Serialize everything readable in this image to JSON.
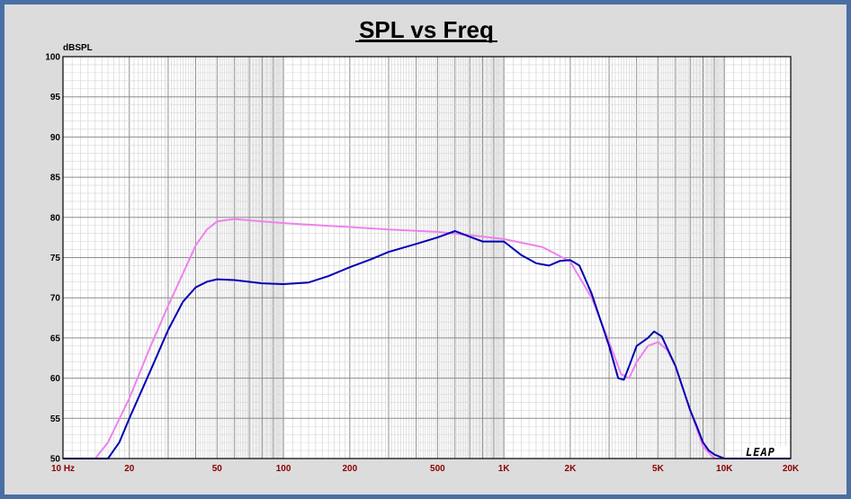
{
  "chart_data": {
    "type": "line",
    "title": "SPL vs Freq",
    "ylabel": "dBSPL",
    "xlabel": "",
    "xscale": "log",
    "xlim": [
      10,
      20000
    ],
    "ylim": [
      50,
      100
    ],
    "grid": true,
    "legend": "none",
    "logo": "LEAP",
    "x_tick_values": [
      10,
      20,
      50,
      100,
      200,
      500,
      1000,
      2000,
      5000,
      10000,
      20000
    ],
    "x_tick_labels": [
      "10 Hz",
      "20",
      "50",
      "100",
      "200",
      "500",
      "1K",
      "2K",
      "5K",
      "10K",
      "20K"
    ],
    "y_tick_values": [
      100,
      95,
      90,
      85,
      80,
      75,
      70,
      65,
      60,
      55,
      50
    ],
    "y_tick_labels": [
      "100",
      "95",
      "90",
      "85",
      "80",
      "75",
      "70",
      "65",
      "60",
      "55",
      "50"
    ],
    "series": [
      {
        "color": "#ee82ee",
        "points": [
          [
            10,
            50
          ],
          [
            14,
            50
          ],
          [
            16,
            52
          ],
          [
            20,
            57.5
          ],
          [
            25,
            64
          ],
          [
            30,
            69
          ],
          [
            35,
            73
          ],
          [
            40,
            76.5
          ],
          [
            45,
            78.5
          ],
          [
            50,
            79.5
          ],
          [
            60,
            79.8
          ],
          [
            80,
            79.5
          ],
          [
            100,
            79.3
          ],
          [
            150,
            79
          ],
          [
            200,
            78.8
          ],
          [
            300,
            78.5
          ],
          [
            500,
            78.2
          ],
          [
            700,
            77.8
          ],
          [
            1000,
            77.3
          ],
          [
            1500,
            76.3
          ],
          [
            2000,
            74.5
          ],
          [
            2500,
            70
          ],
          [
            3000,
            64.5
          ],
          [
            3400,
            60.5
          ],
          [
            3700,
            60
          ],
          [
            4000,
            62
          ],
          [
            4500,
            64
          ],
          [
            5000,
            64.5
          ],
          [
            5500,
            63.5
          ],
          [
            6000,
            61.5
          ],
          [
            7000,
            56
          ],
          [
            8000,
            51.5
          ],
          [
            9000,
            50
          ],
          [
            10000,
            50
          ],
          [
            20000,
            50
          ]
        ]
      },
      {
        "color": "#0000b4",
        "points": [
          [
            10,
            50
          ],
          [
            16,
            50
          ],
          [
            18,
            52
          ],
          [
            20,
            55
          ],
          [
            25,
            61
          ],
          [
            30,
            66
          ],
          [
            35,
            69.5
          ],
          [
            40,
            71.3
          ],
          [
            45,
            72
          ],
          [
            50,
            72.3
          ],
          [
            60,
            72.2
          ],
          [
            80,
            71.8
          ],
          [
            100,
            71.7
          ],
          [
            130,
            71.9
          ],
          [
            160,
            72.7
          ],
          [
            200,
            73.8
          ],
          [
            250,
            74.8
          ],
          [
            300,
            75.7
          ],
          [
            400,
            76.7
          ],
          [
            500,
            77.5
          ],
          [
            600,
            78.3
          ],
          [
            700,
            77.6
          ],
          [
            800,
            77
          ],
          [
            1000,
            77
          ],
          [
            1200,
            75.3
          ],
          [
            1400,
            74.3
          ],
          [
            1600,
            74
          ],
          [
            1800,
            74.6
          ],
          [
            2000,
            74.7
          ],
          [
            2200,
            74
          ],
          [
            2500,
            70.5
          ],
          [
            3000,
            64
          ],
          [
            3300,
            60
          ],
          [
            3500,
            59.8
          ],
          [
            3700,
            61.5
          ],
          [
            4000,
            64
          ],
          [
            4500,
            65
          ],
          [
            4800,
            65.8
          ],
          [
            5200,
            65.2
          ],
          [
            6000,
            61.5
          ],
          [
            7000,
            56
          ],
          [
            7500,
            54
          ],
          [
            8000,
            52
          ],
          [
            8500,
            51
          ],
          [
            9000,
            50.5
          ],
          [
            10000,
            50
          ],
          [
            20000,
            50
          ]
        ]
      }
    ]
  }
}
